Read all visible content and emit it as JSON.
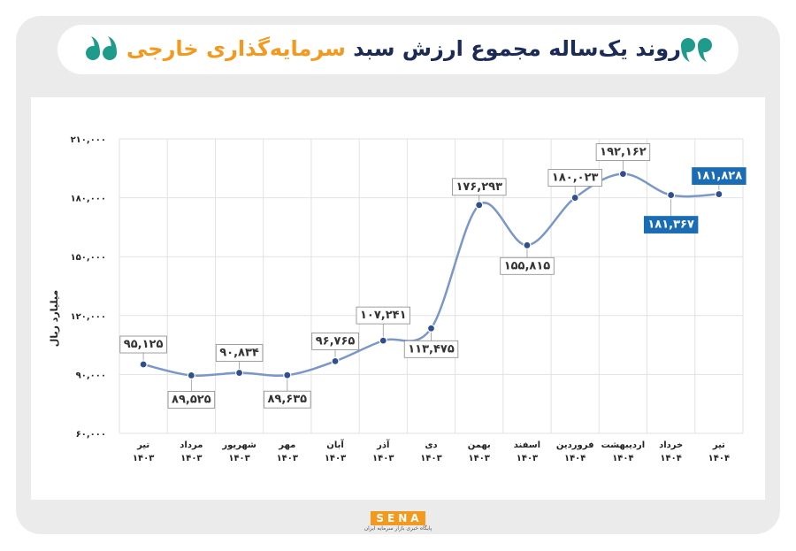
{
  "chart_data": {
    "type": "line",
    "title_main": "روند یک‌ساله مجموع ارزش سبد",
    "title_highlight": "سرمایه‌گذاری خارجی",
    "y_label": "میلیارد ریال",
    "categories": [
      "تیر\n۱۴۰۳",
      "مرداد\n۱۴۰۳",
      "شهریور\n۱۴۰۳",
      "مهر\n۱۴۰۳",
      "آبان\n۱۴۰۳",
      "آذر\n۱۴۰۳",
      "دی\n۱۴۰۳",
      "بهمن\n۱۴۰۳",
      "اسفند\n۱۴۰۳",
      "فروردین\n۱۴۰۴",
      "اردیبهشت\n۱۴۰۴",
      "خرداد\n۱۴۰۴",
      "تیر\n۱۴۰۴"
    ],
    "values": [
      95125,
      89525,
      90834,
      89635,
      96765,
      107241,
      113475,
      176293,
      155815,
      180023,
      192162,
      181367,
      181828
    ],
    "value_labels": [
      "۹۵,۱۲۵",
      "۸۹,۵۲۵",
      "۹۰,۸۳۴",
      "۸۹,۶۳۵",
      "۹۶,۷۶۵",
      "۱۰۷,۲۴۱",
      "۱۱۳,۴۷۵",
      "۱۷۶,۲۹۳",
      "۱۵۵,۸۱۵",
      "۱۸۰,۰۲۳",
      "۱۹۲,۱۶۲",
      "۱۸۱,۳۶۷",
      "۱۸۱,۸۲۸"
    ],
    "color": "#7b97c9",
    "ylim": [
      60000,
      210000
    ],
    "yticks": [
      {
        "value": 60000,
        "label": "۶۰,۰۰۰"
      },
      {
        "value": 90000,
        "label": "۹۰,۰۰۰"
      },
      {
        "value": 120000,
        "label": "۱۲۰,۰۰۰"
      },
      {
        "value": 150000,
        "label": "۱۵۰,۰۰۰"
      },
      {
        "value": 180000,
        "label": "۱۸۰,۰۰۰"
      },
      {
        "value": 210000,
        "label": "۲۱۰,۰۰۰"
      }
    ],
    "grid": true,
    "logo": "SENA",
    "logo_caption": "پایگاه خبری بازار سرمایه ایران"
  }
}
